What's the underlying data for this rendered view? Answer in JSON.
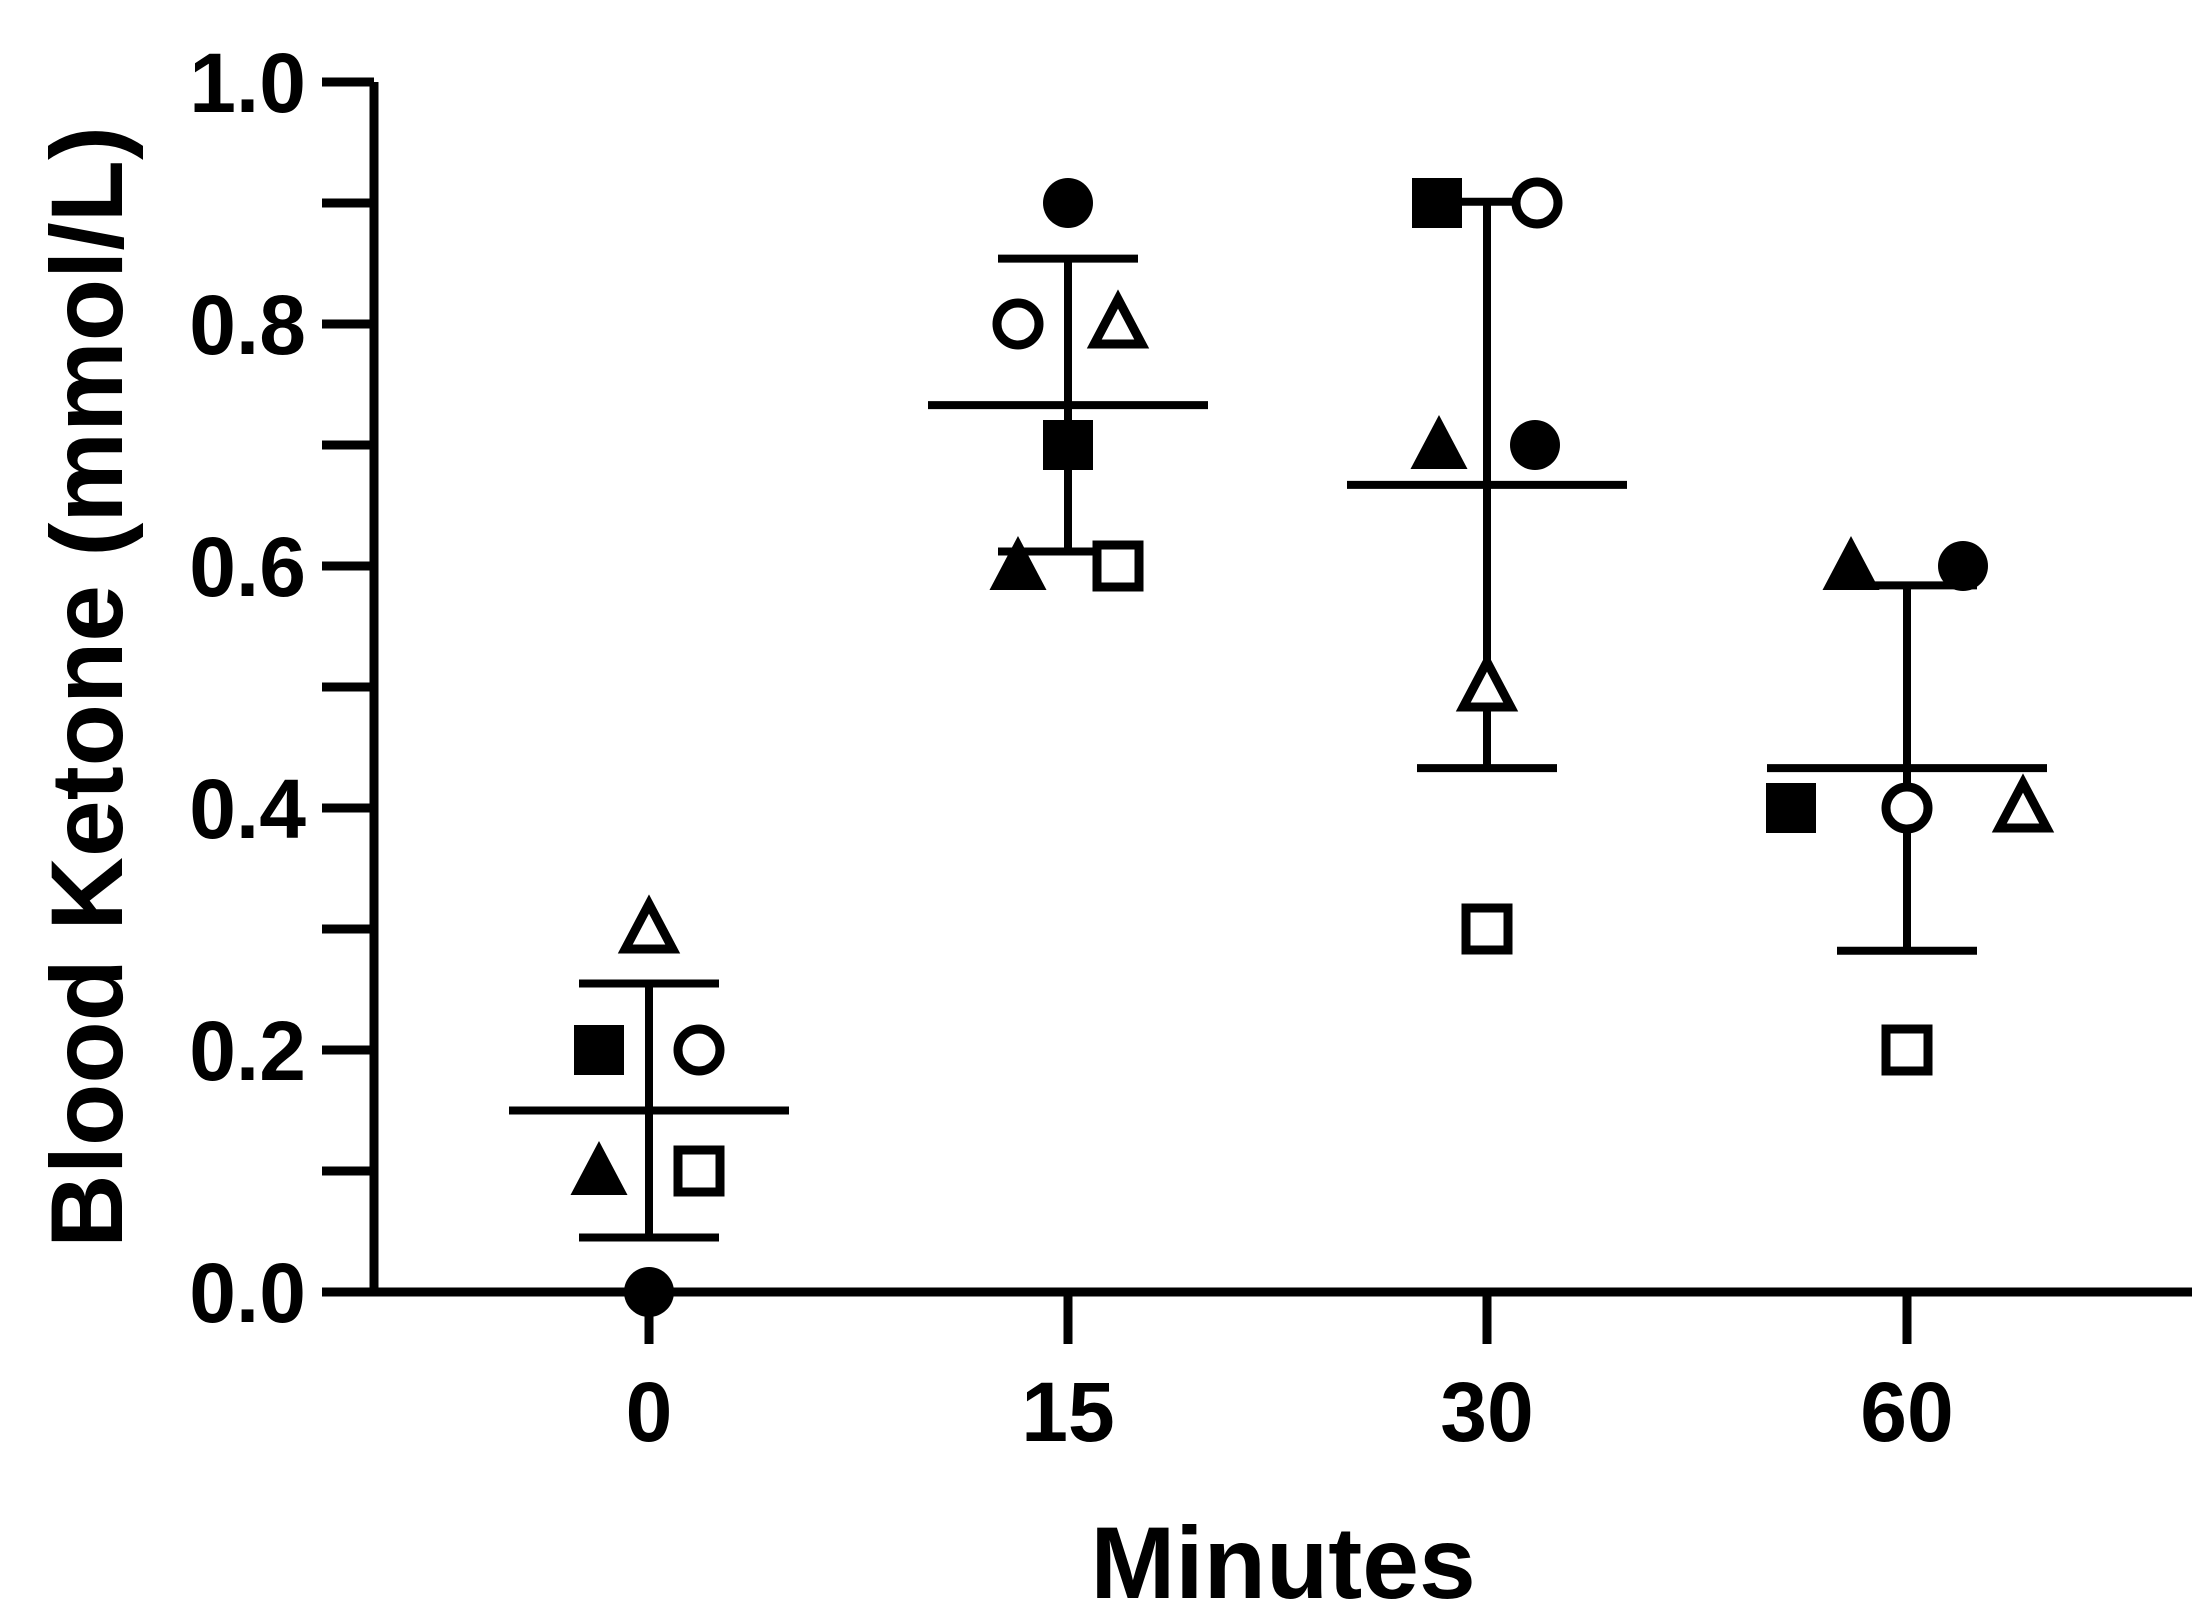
{
  "chart_data": {
    "type": "scatter",
    "title": "",
    "xlabel": "Minutes",
    "ylabel": "Blood Ketone (mmol/L)",
    "categories": [
      "0",
      "15",
      "30",
      "60"
    ],
    "ylim": [
      0,
      1.0
    ],
    "yticks": [
      "0.0",
      "0.2",
      "0.4",
      "0.6",
      "0.8",
      "1.0"
    ],
    "ytick_values": [
      0,
      0.2,
      0.4,
      0.6,
      0.8,
      1.0
    ],
    "grid": false,
    "legend": "none",
    "series": [
      {
        "marker": "filled-circle",
        "values": [
          0.0,
          0.9,
          0.7,
          0.6
        ]
      },
      {
        "marker": "filled-square",
        "values": [
          0.2,
          0.7,
          0.9,
          0.4
        ]
      },
      {
        "marker": "filled-triangle",
        "values": [
          0.1,
          0.6,
          0.7,
          0.6
        ]
      },
      {
        "marker": "open-circle",
        "values": [
          0.2,
          0.8,
          0.9,
          0.4
        ]
      },
      {
        "marker": "open-square",
        "values": [
          0.1,
          0.6,
          0.3,
          0.2
        ]
      },
      {
        "marker": "open-triangle",
        "values": [
          0.3,
          0.8,
          0.5,
          0.4
        ]
      }
    ],
    "summary": {
      "mean": [
        0.15,
        0.733,
        0.667,
        0.433
      ],
      "sd": [
        0.105,
        0.121,
        0.234,
        0.151
      ]
    }
  }
}
